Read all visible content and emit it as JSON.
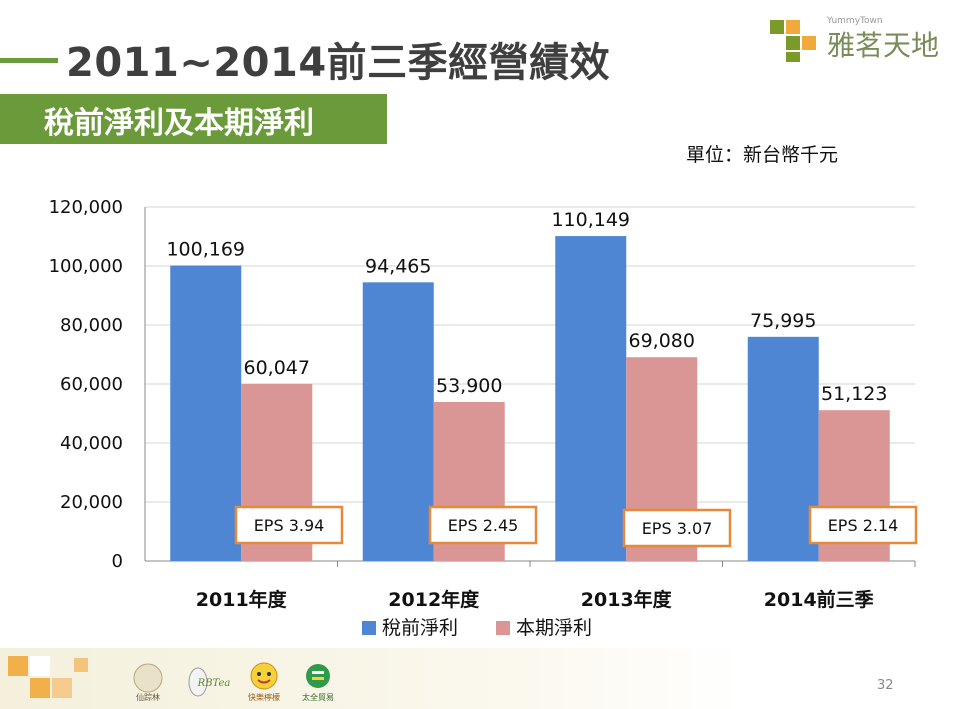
{
  "slide": {
    "title": "2011~2014前三季經營績效",
    "subtitle": "稅前淨利及本期淨利",
    "unit": "單位：新台幣千元",
    "page_number": "32",
    "logo": {
      "tag": "YummyTown",
      "text": "雅茗天地"
    },
    "brands": [
      "仙踪林",
      "RBTea",
      "快樂檸檬",
      "太全貿易"
    ]
  },
  "chart_data": {
    "type": "bar",
    "categories": [
      "2011年度",
      "2012年度",
      "2013年度",
      "2014前三季"
    ],
    "series": [
      {
        "name": "稅前淨利",
        "values": [
          100169,
          94465,
          110149,
          75995
        ],
        "labels": [
          "100,169",
          "94,465",
          "110,149",
          "75,995"
        ],
        "color": "#4f86d4"
      },
      {
        "name": "本期淨利",
        "values": [
          60047,
          53900,
          69080,
          51123
        ],
        "labels": [
          "60,047",
          "53,900",
          "69,080",
          "51,123"
        ],
        "color": "#d99694"
      }
    ],
    "ylim": [
      0,
      120000
    ],
    "yticks": [
      "0",
      "20,000",
      "40,000",
      "60,000",
      "80,000",
      "100,000",
      "120,000"
    ],
    "grid": true,
    "legend_position": "bottom",
    "eps_annotations": [
      "EPS 3.94",
      "EPS 2.45",
      "EPS 3.07",
      "EPS 2.14"
    ],
    "eps_color": "#e58a3a"
  }
}
